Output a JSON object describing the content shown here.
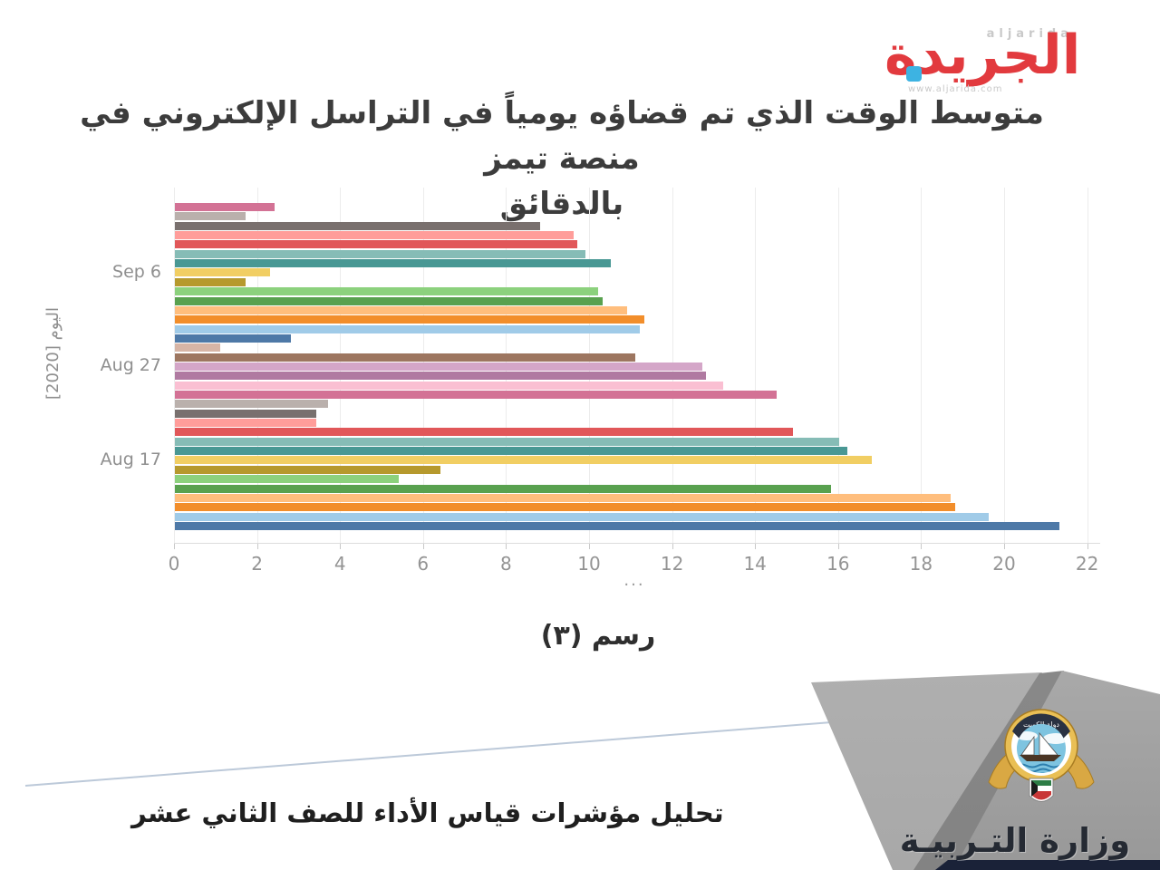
{
  "logo": {
    "wordmark": "الجريدة",
    "name_latin": "aljarida",
    "website": "www.aljarida.com",
    "wordmark_color": "#e23a3e",
    "dot_color": "#3db3e2"
  },
  "chart": {
    "title_line1": "متوسط الوقت الذي تم قضاؤه يومياً  في التراسل الإلكتروني في منصة تيمز",
    "title_line2": "بالدقائق",
    "caption": "رسم (٣)",
    "truncation_marker": "..."
  },
  "chart_data": {
    "type": "bar",
    "orientation": "horizontal",
    "title": "متوسط الوقت الذي تم قضاؤه يومياً في التراسل الإلكتروني في منصة تيمز بالدقائق",
    "ylabel": "اليوم [2020]",
    "xlim": [
      0,
      22
    ],
    "x_ticks": [
      0,
      2,
      4,
      6,
      8,
      10,
      12,
      14,
      16,
      18,
      20,
      22
    ],
    "grid": true,
    "unit": "minutes",
    "visible_y_tick_labels": [
      {
        "label": "Sep 6",
        "bar_index": 7
      },
      {
        "label": "Aug 27",
        "bar_index": 17
      },
      {
        "label": "Aug 17",
        "bar_index": 27
      }
    ],
    "values": [
      2.4,
      1.7,
      8.8,
      9.6,
      9.7,
      9.9,
      10.5,
      2.3,
      1.7,
      10.2,
      10.3,
      10.9,
      11.3,
      11.2,
      2.8,
      1.1,
      11.1,
      12.7,
      12.8,
      13.2,
      14.5,
      3.7,
      3.4,
      3.4,
      14.9,
      16.0,
      16.2,
      16.8,
      6.4,
      5.4,
      15.8,
      18.7,
      18.8,
      19.6,
      21.3
    ],
    "colors": [
      "#D37295",
      "#BAB0AC",
      "#79706E",
      "#FF9D9A",
      "#E15759",
      "#86BCB6",
      "#499894",
      "#F1CE63",
      "#B6992D",
      "#8CD17D",
      "#59A14F",
      "#FFBE7D",
      "#F28E2B",
      "#A0CBE8",
      "#4E79A7",
      "#D7B5A6",
      "#9D7660",
      "#D4A6C8",
      "#B07AA1",
      "#FABFD2",
      "#D37295",
      "#BAB0AC",
      "#79706E",
      "#FF9D9A",
      "#E15759",
      "#86BCB6",
      "#499894",
      "#F1CE63",
      "#B6992D",
      "#8CD17D",
      "#59A14F",
      "#FFBE7D",
      "#F28E2B",
      "#A0CBE8",
      "#4E79A7"
    ]
  },
  "footer": {
    "report_title": "تحليل مؤشرات قياس الأداء للصف الثاني عشر",
    "ministry_name": "وزارة التـربيـة",
    "emblem_text": "دولة الكويت"
  }
}
